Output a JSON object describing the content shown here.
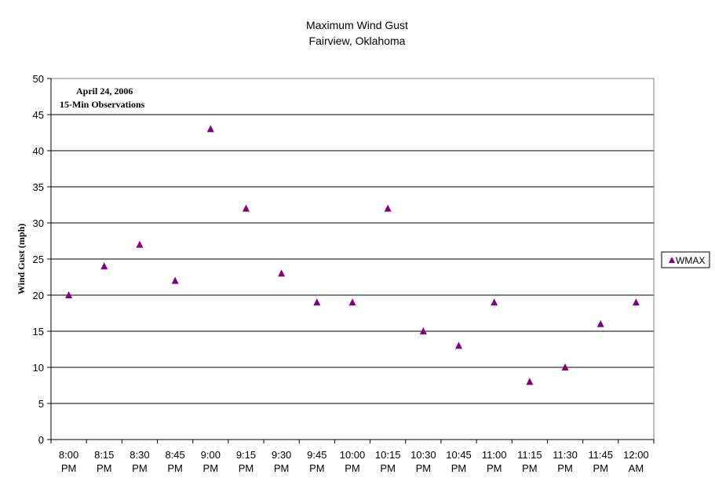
{
  "chart_data": {
    "type": "scatter",
    "title": "Maximum Wind Gust",
    "subtitle": "Fairview, Oklahoma",
    "xlabel": "",
    "ylabel": "Wind Gust (mph)",
    "annotation": [
      "April 24, 2006",
      "15-Min Observations"
    ],
    "categories": [
      [
        "8:00",
        "PM"
      ],
      [
        "8:15",
        "PM"
      ],
      [
        "8:30",
        "PM"
      ],
      [
        "8:45",
        "PM"
      ],
      [
        "9:00",
        "PM"
      ],
      [
        "9:15",
        "PM"
      ],
      [
        "9:30",
        "PM"
      ],
      [
        "9:45",
        "PM"
      ],
      [
        "10:00",
        "PM"
      ],
      [
        "10:15",
        "PM"
      ],
      [
        "10:30",
        "PM"
      ],
      [
        "10:45",
        "PM"
      ],
      [
        "11:00",
        "PM"
      ],
      [
        "11:15",
        "PM"
      ],
      [
        "11:30",
        "PM"
      ],
      [
        "11:45",
        "PM"
      ],
      [
        "12:00",
        "AM"
      ]
    ],
    "series": [
      {
        "name": "WMAX",
        "marker": "triangle",
        "color": "#800080",
        "values": [
          20,
          24,
          27,
          22,
          43,
          32,
          23,
          19,
          19,
          32,
          15,
          13,
          19,
          8,
          10,
          16,
          19
        ]
      }
    ],
    "ylim": [
      0,
      50
    ],
    "yticks": [
      0,
      5,
      10,
      15,
      20,
      25,
      30,
      35,
      40,
      45,
      50
    ],
    "grid": "horizontal",
    "legend": "right",
    "colors": {
      "background": "#ffffff",
      "grid": "#000000",
      "marker": "#800080"
    }
  }
}
